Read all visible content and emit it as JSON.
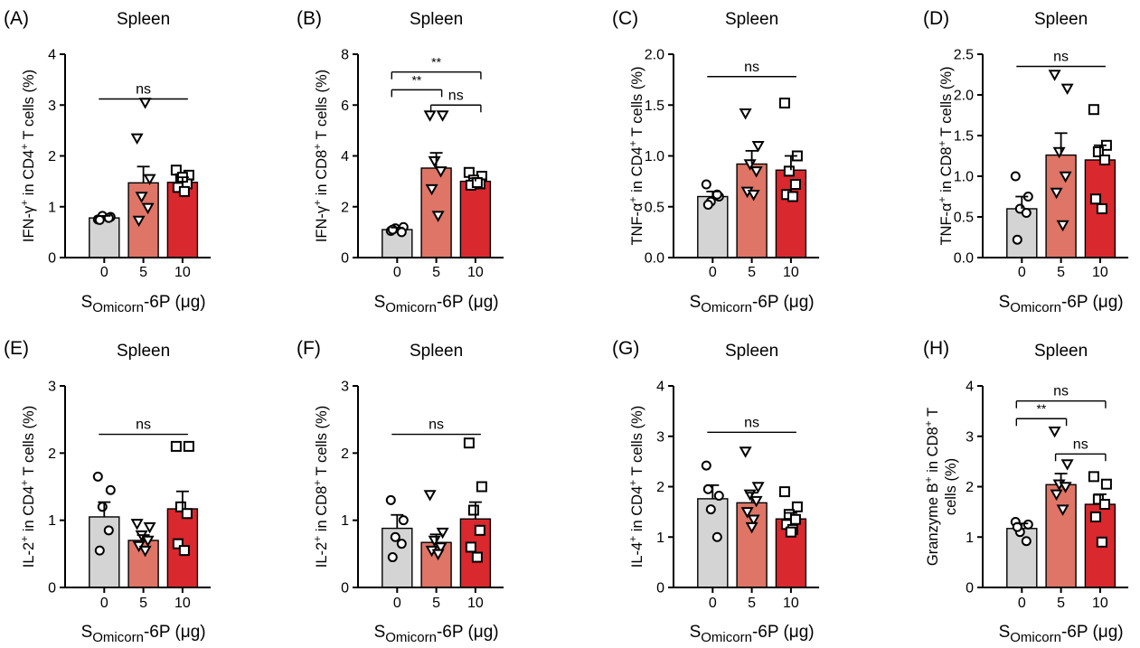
{
  "figure": {
    "xlabel_main": "S",
    "xlabel_sub": "Omicorn",
    "xlabel_rest": "-6P (μg)",
    "categories": [
      "0",
      "5",
      "10"
    ],
    "colors": {
      "c0": "#d4d4d4",
      "c5": "#de7566",
      "c10": "#d9282e"
    }
  },
  "chart_data": [
    {
      "type": "bar",
      "panel": "(A)",
      "title": "Spleen",
      "ylabel": {
        "pre": "IFN-γ",
        "sup1": "+",
        "mid": " in CD4",
        "sup2": "+",
        "post": " T cells (%)"
      },
      "ylim": [
        0,
        4
      ],
      "ticks": [
        0,
        1,
        2,
        3,
        4
      ],
      "tick_labels": [
        "0",
        "1",
        "2",
        "3",
        "4"
      ],
      "categories": [
        "0",
        "5",
        "10"
      ],
      "values": [
        0.78,
        1.47,
        1.48
      ],
      "sem": [
        0.04,
        0.32,
        0.1
      ],
      "points": [
        [
          0.75,
          0.8,
          0.82,
          0.78,
          0.74
        ],
        [
          2.35,
          1.55,
          1.2,
          0.98,
          0.73,
          3.05
        ],
        [
          1.72,
          1.62,
          1.55,
          1.45,
          1.38,
          1.3,
          1.58
        ]
      ],
      "sig": [
        {
          "from": 0,
          "to": 2,
          "y": 3.12,
          "label": "ns"
        }
      ]
    },
    {
      "type": "bar",
      "panel": "(B)",
      "title": "Spleen",
      "ylabel": {
        "pre": "IFN-γ",
        "sup1": "+",
        "mid": " in CD8",
        "sup2": "+",
        "post": " T cells (%)"
      },
      "ylim": [
        0,
        8
      ],
      "ticks": [
        0,
        2,
        4,
        6,
        8
      ],
      "tick_labels": [
        "0",
        "2",
        "4",
        "6",
        "8"
      ],
      "categories": [
        "0",
        "5",
        "10"
      ],
      "values": [
        1.1,
        3.52,
        3.0
      ],
      "sem": [
        0.08,
        0.6,
        0.12
      ],
      "points": [
        [
          1.05,
          1.2,
          1.15,
          1.0,
          1.1
        ],
        [
          5.6,
          5.6,
          3.8,
          3.4,
          2.7,
          1.65
        ],
        [
          3.35,
          3.2,
          3.05,
          2.9,
          2.85,
          2.95
        ]
      ],
      "sig": [
        {
          "from": 0,
          "to": 1,
          "y": 6.6,
          "label": "**"
        },
        {
          "from": 1,
          "to": 2,
          "y": 6.0,
          "label": "ns"
        },
        {
          "from": 0,
          "to": 2,
          "y": 7.3,
          "label": "**"
        }
      ]
    },
    {
      "type": "bar",
      "panel": "(C)",
      "title": "Spleen",
      "ylabel": {
        "pre": "TNF-α",
        "sup1": "+",
        "mid": " in CD4",
        "sup2": "+",
        "post": " T cells (%)"
      },
      "ylim": [
        0,
        2
      ],
      "ticks": [
        0,
        0.5,
        1,
        1.5,
        2
      ],
      "tick_labels": [
        "0.0",
        "0.5",
        "1.0",
        "1.5",
        "2.0"
      ],
      "categories": [
        "0",
        "5",
        "10"
      ],
      "values": [
        0.6,
        0.92,
        0.86
      ],
      "sem": [
        0.05,
        0.13,
        0.14
      ],
      "points": [
        [
          0.72,
          0.6,
          0.55,
          0.62,
          0.52
        ],
        [
          1.42,
          1.1,
          0.92,
          0.85,
          0.65,
          0.62
        ],
        [
          1.52,
          1.0,
          0.85,
          0.72,
          0.62,
          0.6
        ]
      ],
      "sig": [
        {
          "from": 0,
          "to": 2,
          "y": 1.78,
          "label": "ns"
        }
      ]
    },
    {
      "type": "bar",
      "panel": "(D)",
      "title": "Spleen",
      "ylabel": {
        "pre": "TNF-α",
        "sup1": "+",
        "mid": " in CD8",
        "sup2": "+",
        "post": " T cells (%)"
      },
      "ylim": [
        0,
        2.5
      ],
      "ticks": [
        0,
        0.5,
        1,
        1.5,
        2,
        2.5
      ],
      "tick_labels": [
        "0.0",
        "0.5",
        "1.0",
        "1.5",
        "2.0",
        "2.5"
      ],
      "categories": [
        "0",
        "5",
        "10"
      ],
      "values": [
        0.6,
        1.26,
        1.2
      ],
      "sem": [
        0.15,
        0.27,
        0.18
      ],
      "points": [
        [
          1.0,
          0.75,
          0.6,
          0.55,
          0.22
        ],
        [
          2.25,
          2.08,
          1.3,
          1.0,
          0.8,
          0.4
        ],
        [
          1.82,
          1.38,
          1.3,
          1.2,
          0.72,
          0.6
        ]
      ],
      "sig": [
        {
          "from": 0,
          "to": 2,
          "y": 2.35,
          "label": "ns"
        }
      ]
    },
    {
      "type": "bar",
      "panel": "(E)",
      "title": "Spleen",
      "ylabel": {
        "pre": "IL-2",
        "sup1": "+",
        "mid": " in CD4",
        "sup2": "+",
        "post": " T cells (%)"
      },
      "ylim": [
        0,
        3
      ],
      "ticks": [
        0,
        1,
        2,
        3
      ],
      "tick_labels": [
        "0",
        "1",
        "2",
        "3"
      ],
      "categories": [
        "0",
        "5",
        "10"
      ],
      "values": [
        1.05,
        0.7,
        1.17
      ],
      "sem": [
        0.22,
        0.08,
        0.26
      ],
      "points": [
        [
          1.65,
          1.45,
          1.2,
          0.85,
          0.55
        ],
        [
          0.95,
          0.9,
          0.78,
          0.7,
          0.62,
          0.55
        ],
        [
          2.1,
          2.1,
          1.2,
          1.1,
          0.65,
          0.55
        ]
      ],
      "sig": [
        {
          "from": 0,
          "to": 2,
          "y": 2.28,
          "label": "ns"
        }
      ]
    },
    {
      "type": "bar",
      "panel": "(F)",
      "title": "Spleen",
      "ylabel": {
        "pre": "IL-2",
        "sup1": "+",
        "mid": " in CD8",
        "sup2": "+",
        "post": " T cells (%)"
      },
      "ylim": [
        0,
        3
      ],
      "ticks": [
        0,
        1,
        2,
        3
      ],
      "tick_labels": [
        "0",
        "1",
        "2",
        "3"
      ],
      "categories": [
        "0",
        "5",
        "10"
      ],
      "values": [
        0.88,
        0.67,
        1.02
      ],
      "sem": [
        0.2,
        0.12,
        0.25
      ],
      "points": [
        [
          1.3,
          1.0,
          0.75,
          0.65,
          0.45
        ],
        [
          1.38,
          0.82,
          0.7,
          0.6,
          0.55,
          0.5
        ],
        [
          2.15,
          1.5,
          1.15,
          0.85,
          0.6,
          0.45
        ]
      ],
      "sig": [
        {
          "from": 0,
          "to": 2,
          "y": 2.28,
          "label": "ns"
        }
      ]
    },
    {
      "type": "bar",
      "panel": "(G)",
      "title": "Spleen",
      "ylabel": {
        "pre": "IL-4",
        "sup1": "+",
        "mid": " in CD4",
        "sup2": "+",
        "post": " T cells (%)"
      },
      "ylim": [
        0,
        4
      ],
      "ticks": [
        0,
        1,
        2,
        3,
        4
      ],
      "tick_labels": [
        "0",
        "1",
        "2",
        "3",
        "4"
      ],
      "categories": [
        "0",
        "5",
        "10"
      ],
      "values": [
        1.76,
        1.68,
        1.36
      ],
      "sem": [
        0.27,
        0.2,
        0.12
      ],
      "points": [
        [
          2.42,
          1.82,
          1.55,
          1.0,
          1.95
        ],
        [
          2.7,
          2.0,
          1.85,
          1.72,
          1.5,
          1.35,
          1.2
        ],
        [
          1.9,
          1.6,
          1.45,
          1.35,
          1.25,
          1.15,
          1.1
        ]
      ],
      "sig": [
        {
          "from": 0,
          "to": 2,
          "y": 3.08,
          "label": "ns"
        }
      ]
    },
    {
      "type": "bar",
      "panel": "(H)",
      "title": "Spleen",
      "ylabel": {
        "line1pre": "Granzyme B",
        "line1sup1": "+",
        "line1mid": " in CD8",
        "line1sup2": "+",
        "line1post": " T",
        "line2": "cells (%)"
      },
      "ylim": [
        0,
        4
      ],
      "ticks": [
        0,
        1,
        2,
        3,
        4
      ],
      "tick_labels": [
        "0",
        "1",
        "2",
        "3",
        "4"
      ],
      "categories": [
        "0",
        "5",
        "10"
      ],
      "values": [
        1.17,
        2.04,
        1.65
      ],
      "sem": [
        0.1,
        0.22,
        0.2
      ],
      "points": [
        [
          1.3,
          1.25,
          1.1,
          0.92,
          1.2
        ],
        [
          3.1,
          2.45,
          2.05,
          2.0,
          1.85,
          1.55
        ],
        [
          2.2,
          2.05,
          1.75,
          1.65,
          1.4,
          0.9
        ]
      ],
      "sig": [
        {
          "from": 0,
          "to": 1,
          "y": 3.35,
          "label": "**"
        },
        {
          "from": 1,
          "to": 2,
          "y": 2.65,
          "label": "ns"
        },
        {
          "from": 0,
          "to": 2,
          "y": 3.7,
          "label": "ns"
        }
      ]
    }
  ]
}
